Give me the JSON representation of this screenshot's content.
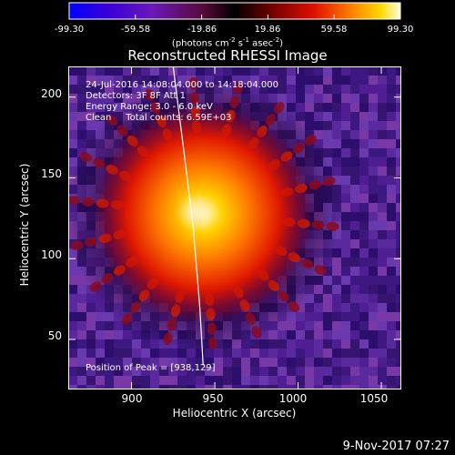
{
  "colorbar": {
    "ticks": [
      "-99.30",
      "-59.58",
      "-19.86",
      "19.86",
      "59.58",
      "99.30"
    ],
    "unit": "(photons cm",
    "unit_exp1": "-2",
    "unit_mid": " s",
    "unit_exp2": "-1",
    "unit_end": " asec",
    "unit_exp3": "-2",
    "unit_close": ")"
  },
  "chart_data": {
    "type": "heatmap",
    "title": "Reconstructed RHESSI Image",
    "xlabel": "Heliocentric X (arcsec)",
    "ylabel": "Heliocentric Y (arcsec)",
    "xlim": [
      862,
      1062
    ],
    "ylim": [
      19,
      219
    ],
    "x_ticks": [
      900,
      950,
      1000,
      1050
    ],
    "y_ticks": [
      50,
      100,
      150,
      200
    ],
    "value_range": [
      -99.3,
      99.3
    ],
    "colormap": "rainbow-hot",
    "annotations": [
      "24-Jul-2016 14:08:04.000 to 14:18:04.000",
      "Detectors: 3F 8F  Att 1",
      "Energy Range: 3.0 - 6.0 keV",
      "Clean     Total counts: 6.59E+03"
    ],
    "peak_label": "Position of Peak = [938,129]",
    "peak": [
      938,
      129
    ],
    "source_center": [
      943,
      128
    ],
    "limb_arc": [
      [
        925,
        219
      ],
      [
        931,
        170
      ],
      [
        937,
        120
      ],
      [
        941,
        70
      ],
      [
        943,
        34
      ]
    ]
  },
  "timestamp": "9-Nov-2017 07:27"
}
